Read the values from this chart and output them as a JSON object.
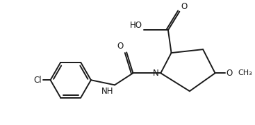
{
  "bg_color": "#ffffff",
  "line_color": "#1a1a1a",
  "line_width": 1.4,
  "font_size": 8.5,
  "figsize": [
    3.67,
    1.8
  ],
  "dpi": 100,
  "xlim": [
    0,
    10
  ],
  "ylim": [
    0,
    4.9
  ]
}
